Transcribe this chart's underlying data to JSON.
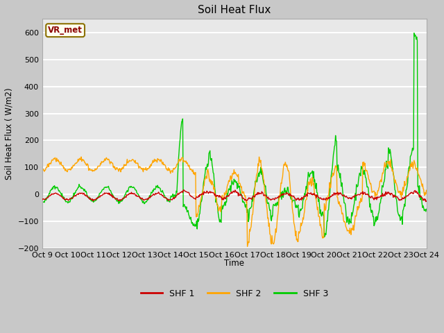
{
  "title": "Soil Heat Flux",
  "ylabel": "Soil Heat Flux ( W/m2)",
  "xlabel": "Time",
  "ylim": [
    -200,
    650
  ],
  "yticks": [
    -200,
    -100,
    0,
    100,
    200,
    300,
    400,
    500,
    600
  ],
  "fig_facecolor": "#c8c8c8",
  "ax_facecolor": "#e8e8e8",
  "grid_color": "white",
  "colors": {
    "SHF 1": "#cc0000",
    "SHF 2": "#ffa500",
    "SHF 3": "#00cc00"
  },
  "legend_label": "VR_met",
  "xtick_labels": [
    "Oct 9",
    "Oct 10",
    "Oct 11",
    "Oct 12",
    "Oct 13",
    "Oct 14",
    "Oct 15",
    "Oct 16",
    "Oct 17",
    "Oct 18",
    "Oct 19",
    "Oct 20",
    "Oct 21",
    "Oct 22",
    "Oct 23",
    "Oct 24"
  ]
}
